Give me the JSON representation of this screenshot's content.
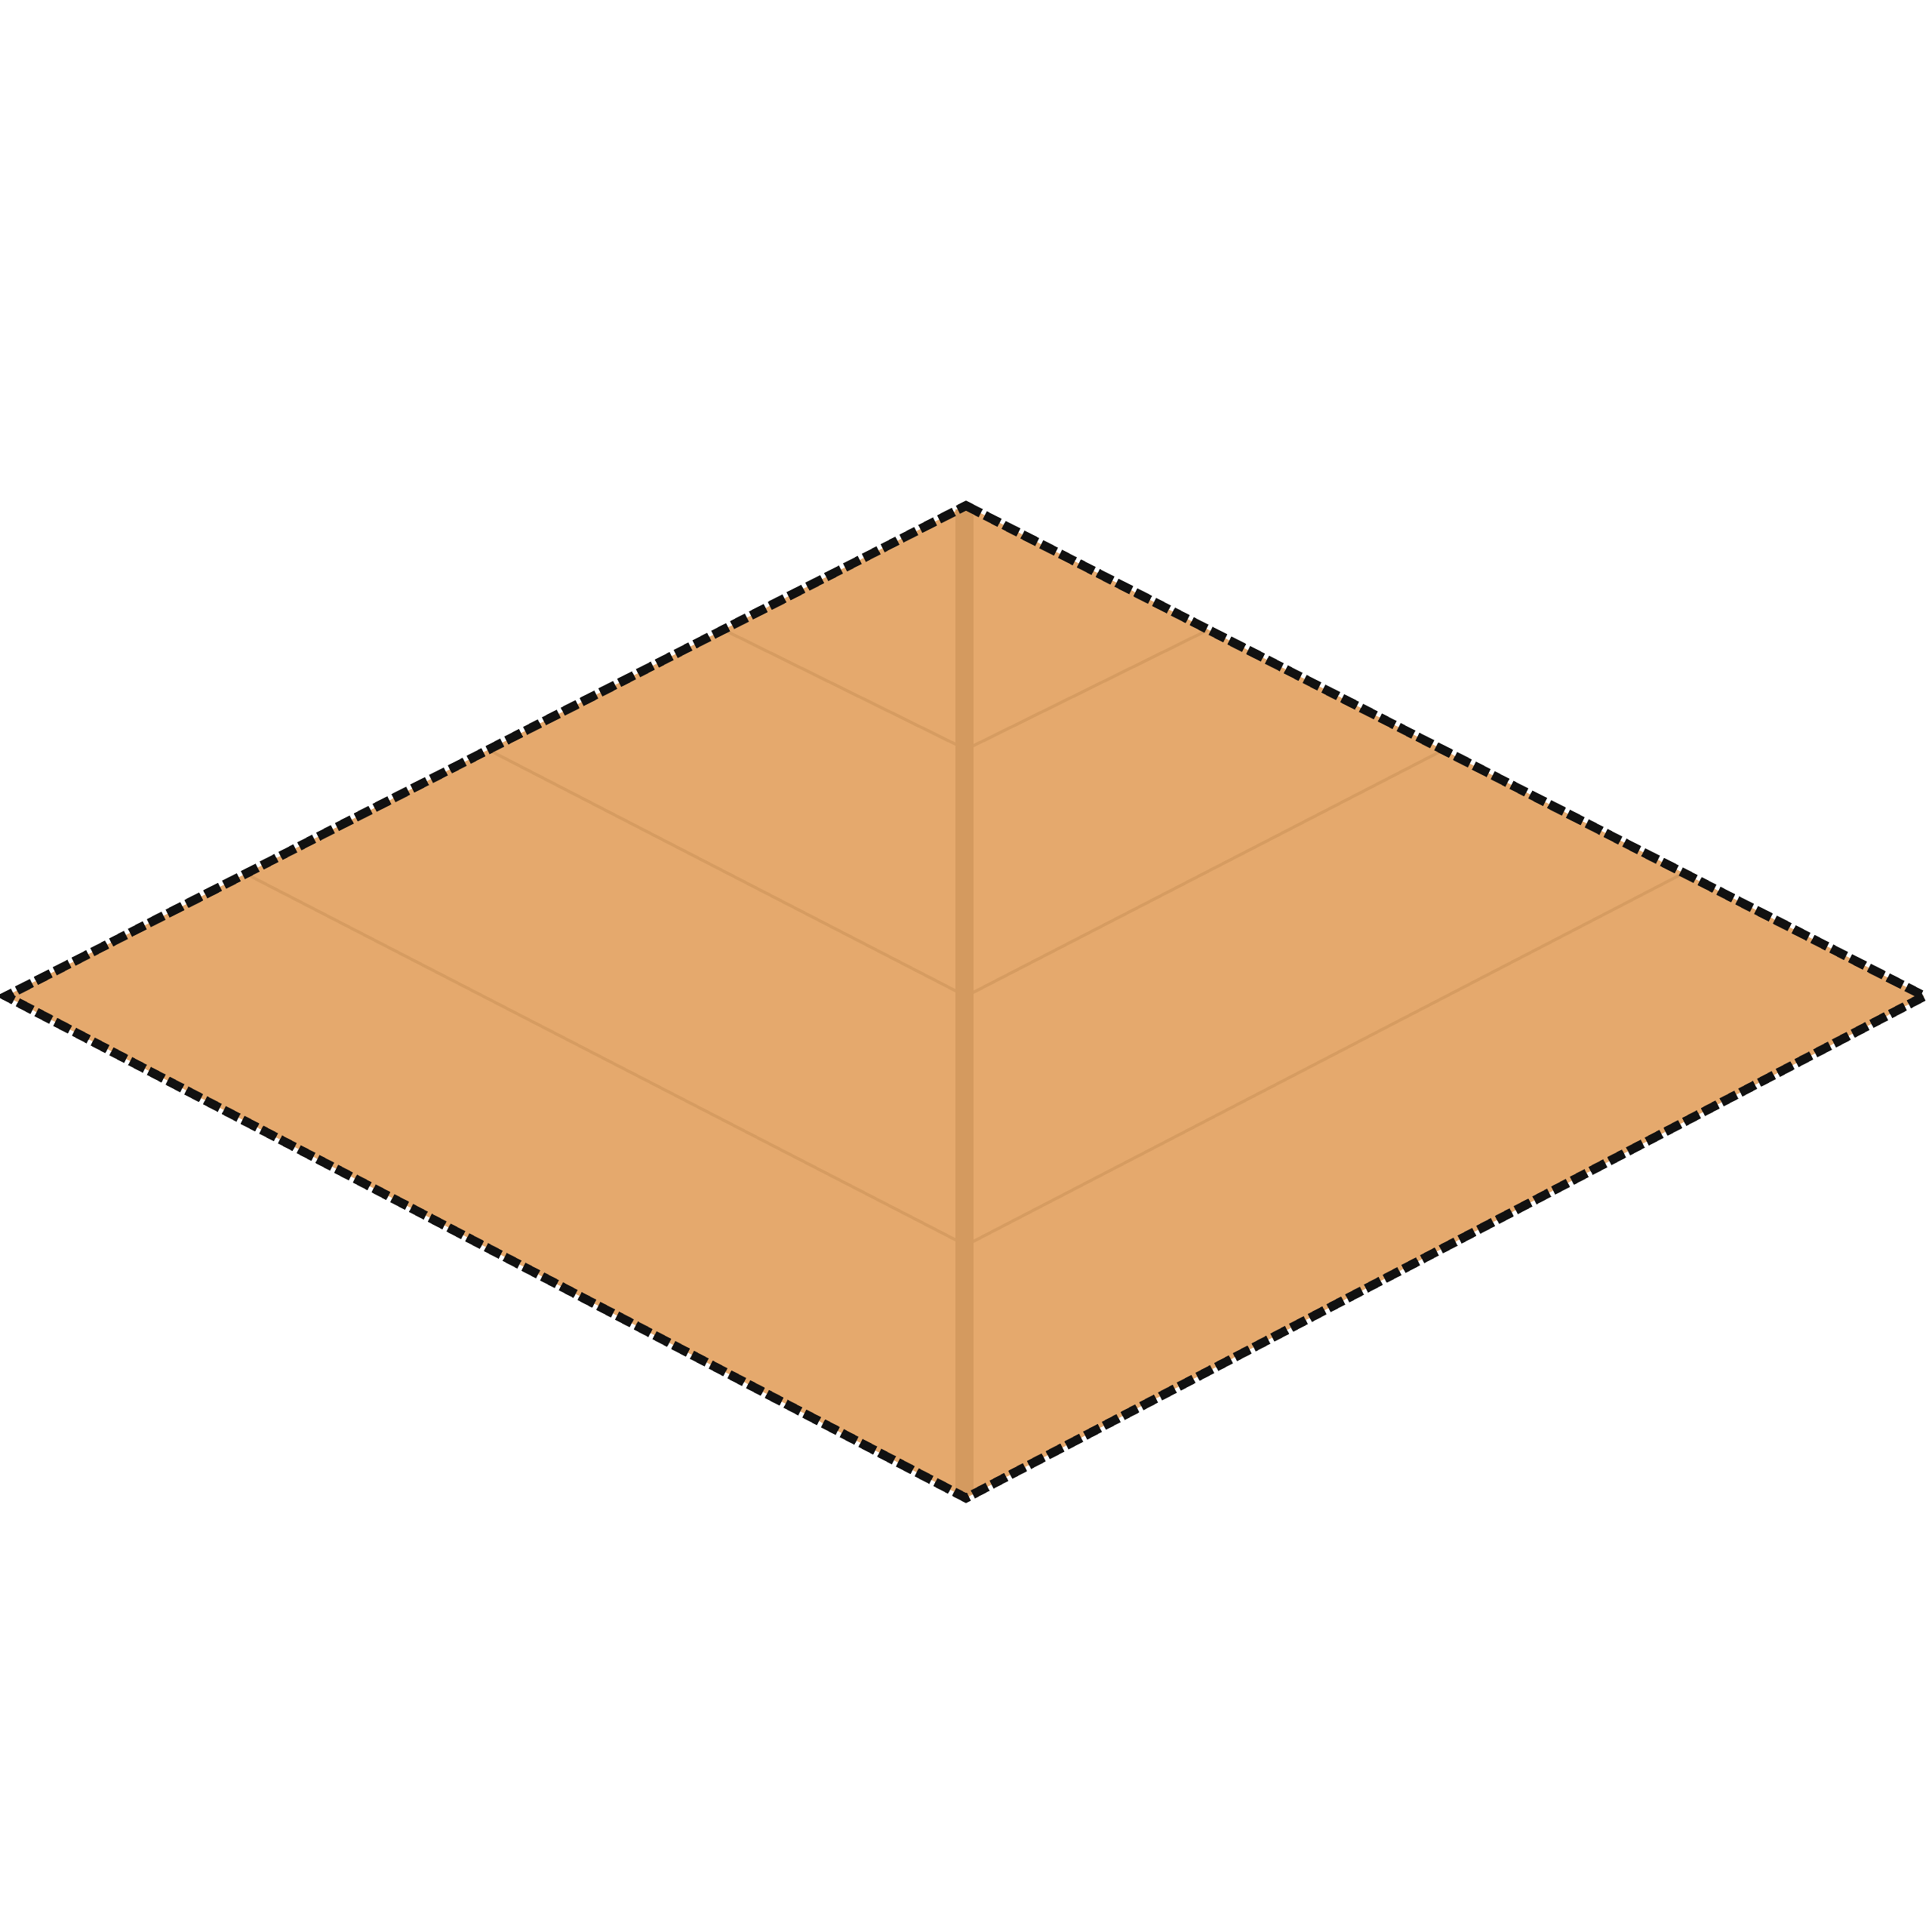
{
  "sprite": {
    "kind": "isometric-floor-tile",
    "colors": {
      "background": "#ffffff",
      "fill": "#e5a96d",
      "seam": "#d49a5f",
      "stroke": "#111111"
    }
  }
}
